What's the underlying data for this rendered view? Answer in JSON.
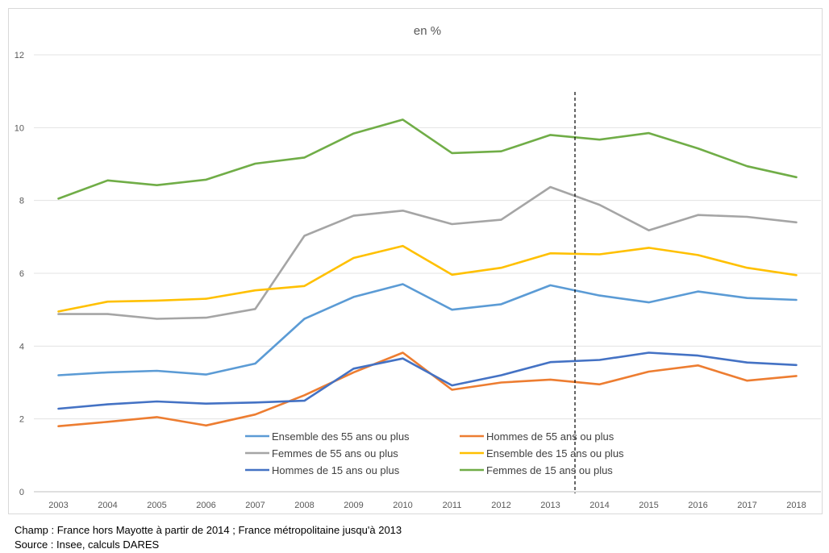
{
  "chart_data": {
    "type": "line",
    "title": "en %",
    "xlabel": "",
    "ylabel": "",
    "ylim": [
      0,
      12
    ],
    "yticks": [
      "0",
      "2",
      "4",
      "6",
      "8",
      "10",
      "12"
    ],
    "grid": true,
    "legend_position": "bottom-center",
    "break_marker_between": [
      "2013",
      "2014"
    ],
    "categories": [
      "2003",
      "2004",
      "2005",
      "2006",
      "2007",
      "2008",
      "2009",
      "2010",
      "2011",
      "2012",
      "2013",
      "2014",
      "2015",
      "2016",
      "2017",
      "2018"
    ],
    "series": [
      {
        "name": "Ensemble des 55 ans ou plus",
        "color": "#5b9bd5",
        "values": [
          3.2,
          3.28,
          3.32,
          3.22,
          3.52,
          4.75,
          5.35,
          5.7,
          5.0,
          5.15,
          5.67,
          5.39,
          5.2,
          5.5,
          5.32,
          5.27
        ]
      },
      {
        "name": "Hommes de 55 ans ou plus",
        "color": "#ed7d31",
        "values": [
          1.8,
          1.92,
          2.05,
          1.82,
          2.12,
          2.65,
          3.28,
          3.82,
          2.8,
          3.0,
          3.08,
          2.95,
          3.3,
          3.47,
          3.05,
          3.18
        ]
      },
      {
        "name": "Femmes de 55 ans ou plus",
        "color": "#a5a5a5",
        "values": [
          4.88,
          4.88,
          4.75,
          4.78,
          5.02,
          7.03,
          7.58,
          7.72,
          7.35,
          7.47,
          8.37,
          7.88,
          7.18,
          7.6,
          7.55,
          7.4
        ]
      },
      {
        "name": "Ensemble des 15 ans ou plus",
        "color": "#ffc000",
        "values": [
          4.95,
          5.22,
          5.25,
          5.3,
          5.53,
          5.65,
          6.42,
          6.75,
          5.96,
          6.15,
          6.55,
          6.52,
          6.7,
          6.5,
          6.15,
          5.95
        ]
      },
      {
        "name": "Hommes de 15 ans ou plus",
        "color": "#4472c4",
        "values": [
          2.28,
          2.4,
          2.48,
          2.42,
          2.45,
          2.5,
          3.38,
          3.66,
          2.92,
          3.2,
          3.56,
          3.62,
          3.82,
          3.74,
          3.55,
          3.48
        ]
      },
      {
        "name": "Femmes de 15 ans ou plus",
        "color": "#70ad47",
        "values": [
          8.05,
          8.55,
          8.42,
          8.57,
          9.01,
          9.18,
          9.84,
          10.22,
          9.3,
          9.35,
          9.8,
          9.67,
          9.85,
          9.43,
          8.94,
          8.64
        ]
      }
    ]
  },
  "notes": {
    "champ": "Champ : France hors Mayotte à partir de 2014 ; France métropolitaine jusqu'à 2013",
    "source": "Source : Insee, calculs DARES"
  }
}
